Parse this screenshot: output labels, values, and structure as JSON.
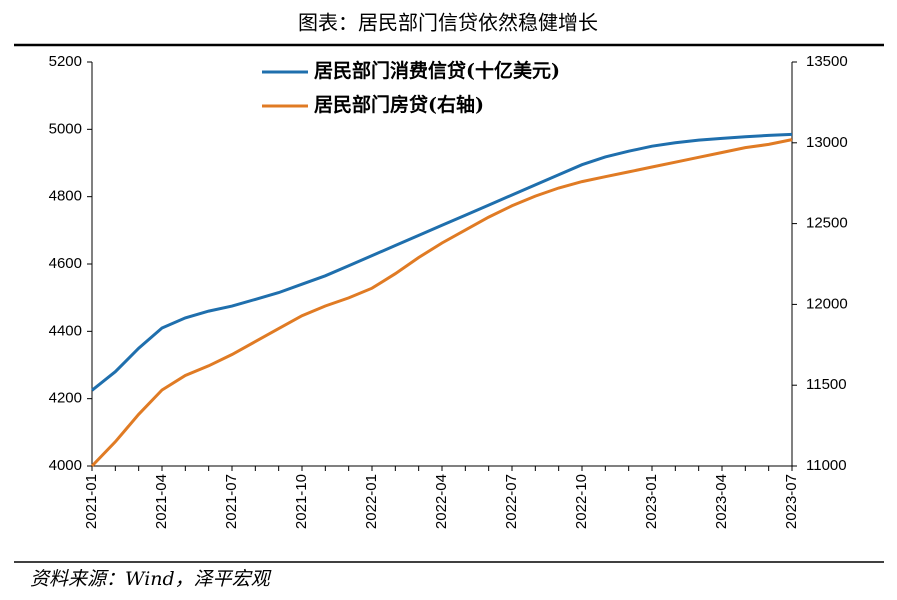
{
  "chart_data": {
    "type": "line",
    "title": "图表：居民部门信贷依然稳健增长",
    "source": "资料来源：Wind，泽平宏观",
    "categories": [
      "2021-01",
      null,
      null,
      "2021-04",
      null,
      null,
      "2021-07",
      null,
      null,
      "2021-10",
      null,
      null,
      "2022-01",
      null,
      null,
      "2022-04",
      null,
      null,
      "2022-07",
      null,
      null,
      "2022-10",
      null,
      null,
      "2023-01",
      null,
      null,
      "2023-04",
      null,
      null,
      "2023-07"
    ],
    "series": [
      {
        "name": "居民部门消费信贷(十亿美元)",
        "color": "#1f6fad",
        "values": [
          4225,
          4280,
          4350,
          4410,
          4440,
          4460,
          4475,
          4495,
          4515,
          4540,
          4565,
          4595,
          4625,
          4655,
          4685,
          4715,
          4745,
          4775,
          4805,
          4835,
          4865,
          4895,
          4918,
          4935,
          4950,
          4960,
          4968,
          4973,
          4978,
          4982,
          4985
        ]
      },
      {
        "name": "居民部门房贷(右轴)",
        "color": "#e07b24",
        "axis": "y2",
        "values": [
          11000,
          11150,
          11320,
          11470,
          11560,
          11620,
          11690,
          11770,
          11850,
          11930,
          11990,
          12040,
          12100,
          12190,
          12290,
          12380,
          12460,
          12540,
          12610,
          12670,
          12720,
          12760,
          12790,
          12820,
          12850,
          12880,
          12910,
          12940,
          12970,
          12990,
          13020
        ]
      }
    ],
    "ylim": [
      4000,
      5200
    ],
    "yticks": [
      4000,
      4200,
      4400,
      4600,
      4800,
      5000,
      5200
    ],
    "y2lim": [
      11000,
      13500
    ],
    "y2ticks": [
      11000,
      11500,
      12000,
      12500,
      13000,
      13500
    ],
    "grid": false
  }
}
